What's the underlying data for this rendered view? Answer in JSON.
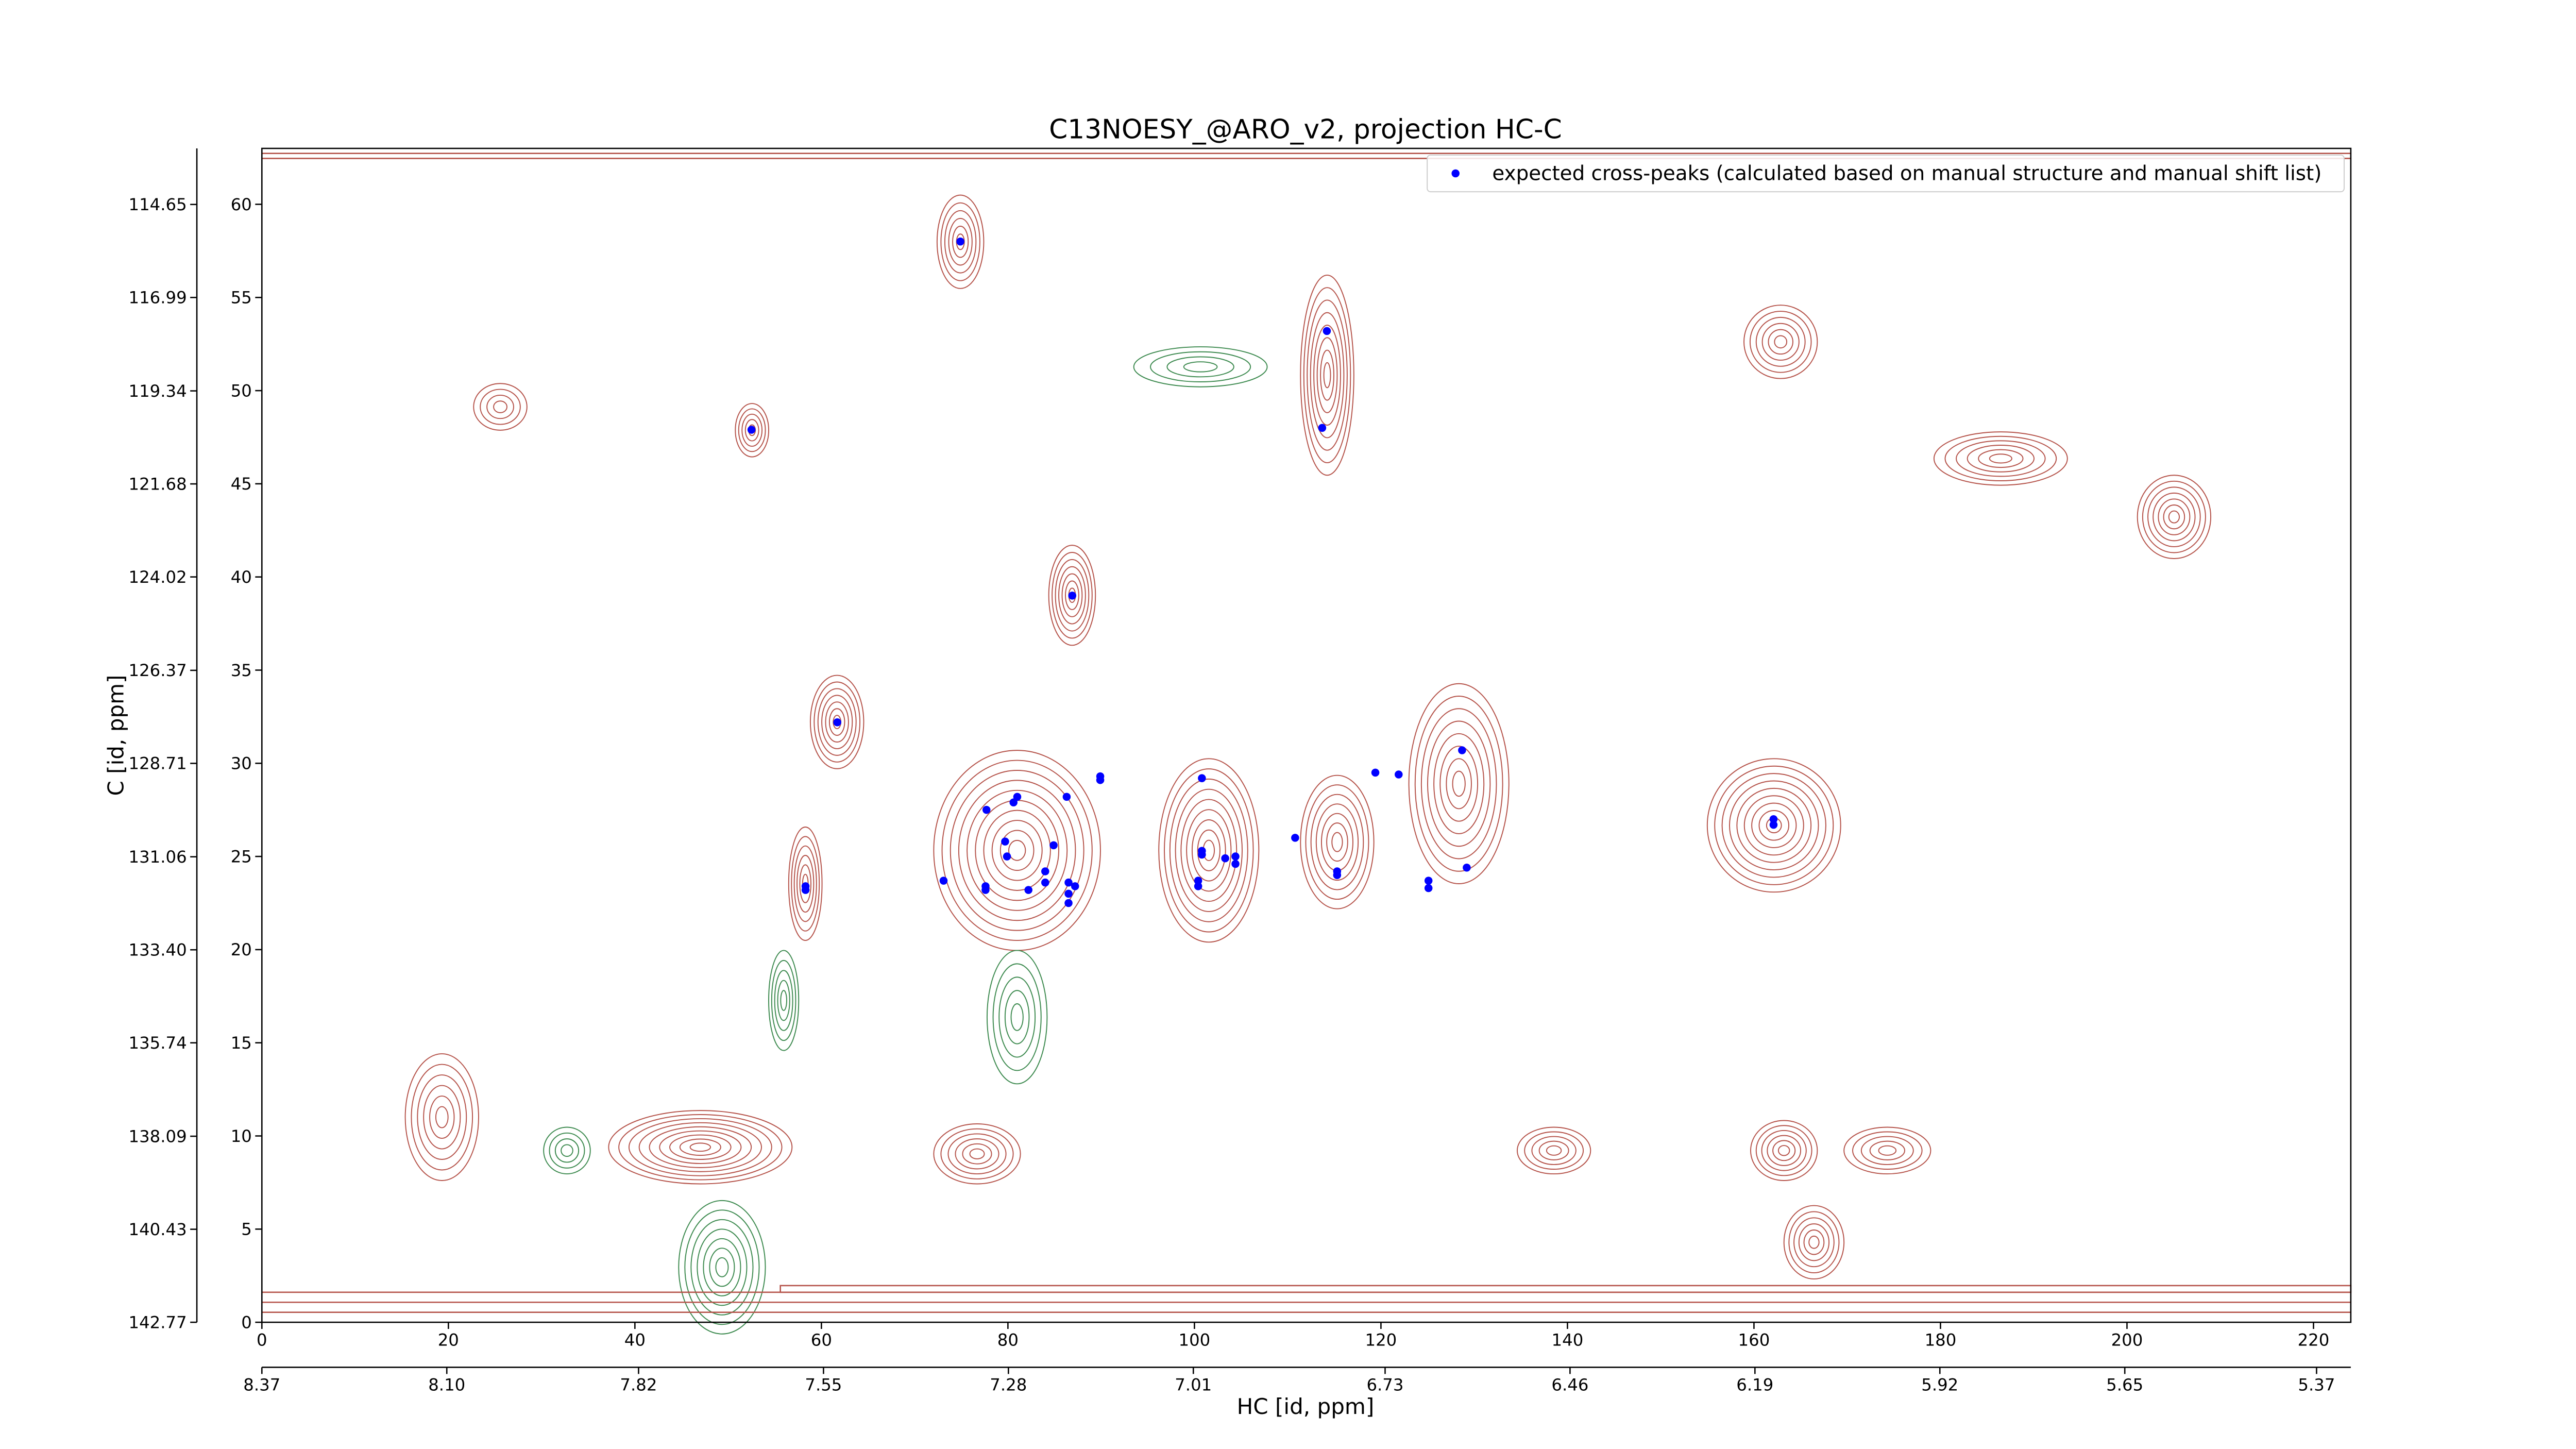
{
  "chart_data": {
    "type": "scatter",
    "title": "C13NOESY_@ARO_v2, projection HC-C",
    "x_label": "HC [id, ppm]",
    "y_label": "C [id, ppm]",
    "xlim": [
      0,
      224
    ],
    "ylim": [
      0,
      63
    ],
    "xticks": [
      0,
      20,
      40,
      60,
      80,
      100,
      120,
      140,
      160,
      180,
      200,
      220
    ],
    "yticks": [
      0,
      5,
      10,
      15,
      20,
      25,
      30,
      35,
      40,
      45,
      50,
      55,
      60
    ],
    "x2lim": [
      8.37,
      5.32
    ],
    "x2ticks": [
      8.37,
      {
        "value": 8.1,
        "label": "8.10"
      },
      7.82,
      7.55,
      7.28,
      7.01,
      6.73,
      6.46,
      6.19,
      5.92,
      5.65,
      5.37
    ],
    "y2lim": [
      142.77,
      113.24
    ],
    "y2ticks": [
      142.77,
      140.43,
      138.09,
      135.74,
      {
        "value": 133.4,
        "label": "133.40"
      },
      131.06,
      128.71,
      126.37,
      124.02,
      121.68,
      119.34,
      116.99,
      114.65
    ],
    "legend_position": "upper right",
    "series": [
      {
        "name": "expected cross-peaks (calculated based on manual structure and manual shift list)",
        "color": "#0000ff",
        "x": [
          74.9,
          114.2,
          113.7,
          52.5,
          86.9,
          61.7,
          58.3,
          58.3,
          73.1,
          77.7,
          77.6,
          77.6,
          79.7,
          79.9,
          80.6,
          81.0,
          82.2,
          84.0,
          84.0,
          84.9,
          86.3,
          86.5,
          86.5,
          86.5,
          87.2,
          89.9,
          89.9,
          100.8,
          100.8,
          100.8,
          100.4,
          100.4,
          103.3,
          104.4,
          104.4,
          110.8,
          115.3,
          115.3,
          119.4,
          121.9,
          128.7,
          125.1,
          125.1,
          129.2,
          162.1,
          162.1
        ],
        "values": [
          58.0,
          53.2,
          48.0,
          47.9,
          39.0,
          32.2,
          23.4,
          23.2,
          23.7,
          27.5,
          23.4,
          23.2,
          25.8,
          25.0,
          27.9,
          28.2,
          23.2,
          24.2,
          23.6,
          25.6,
          28.2,
          23.6,
          23.0,
          22.5,
          23.4,
          29.3,
          29.1,
          29.2,
          25.3,
          25.1,
          23.7,
          23.4,
          24.9,
          25.0,
          24.6,
          26.0,
          24.2,
          24.0,
          29.5,
          29.4,
          30.7,
          23.7,
          23.3,
          24.4,
          27.0,
          26.7
        ]
      }
    ]
  }
}
